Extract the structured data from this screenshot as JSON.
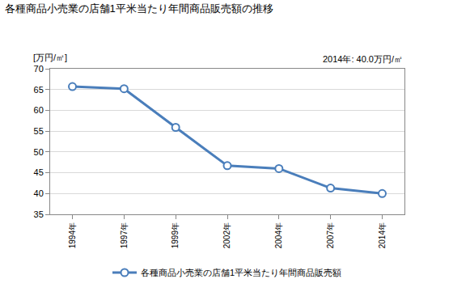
{
  "chart_data": {
    "type": "line",
    "title": "各種商品小売業の店舗1平米当たり年間商品販売額の推移",
    "y_label": "[万円/㎡]",
    "annotations": [
      "2014年: 40.0万円/㎡"
    ],
    "categories": [
      "1994年",
      "1997年",
      "1999年",
      "2002年",
      "2004年",
      "2007年",
      "2014年"
    ],
    "series": [
      {
        "name": "各種商品小売業の店舗1平米当たり年間商品販売額",
        "color": "#4a7ebb",
        "values": [
          65.7,
          65.2,
          55.9,
          46.7,
          46.0,
          41.3,
          40.0
        ],
        "marker": "open-circle",
        "line_style": "solid"
      }
    ],
    "ylim": [
      35,
      70
    ],
    "yticks": [
      35,
      40,
      45,
      50,
      55,
      60,
      65,
      70
    ],
    "grid": true,
    "legend": "bottom"
  }
}
